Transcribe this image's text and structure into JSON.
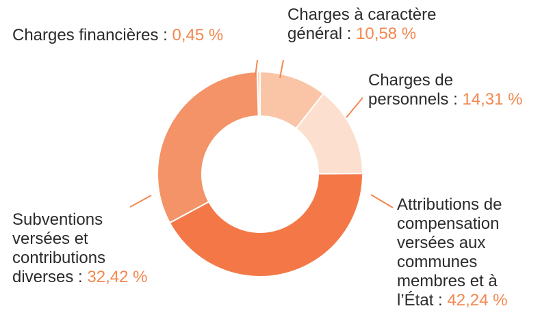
{
  "chart_data": {
    "type": "donut",
    "categories": [
      "Charges à caractère\ngénéral",
      "Charges de\npersonnels",
      "Attributions de\ncompensation\nversées aux\ncommunes\nmembres et à\nl’État",
      "Subventions\nversées et\ncontributions\ndiverses",
      "Charges financières"
    ],
    "values": [
      10.58,
      14.31,
      42.24,
      32.42,
      0.45
    ],
    "value_labels": [
      "10,58 %",
      "14,31 %",
      "42,24 %",
      "32,42 %",
      "0,45 %"
    ],
    "separator": ":",
    "colors": [
      "#f9c5a6",
      "#fcdfcf",
      "#f47847",
      "#f39367",
      "#fad3bd"
    ]
  }
}
